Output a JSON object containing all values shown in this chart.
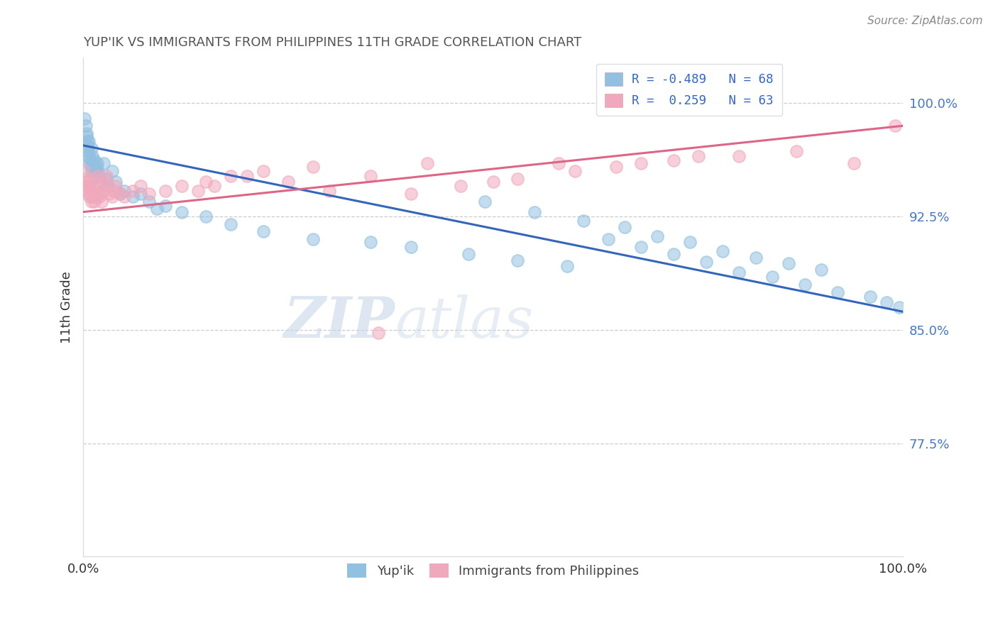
{
  "title": "YUP'IK VS IMMIGRANTS FROM PHILIPPINES 11TH GRADE CORRELATION CHART",
  "source": "Source: ZipAtlas.com",
  "ylabel": "11th Grade",
  "ytick_labels": [
    "100.0%",
    "92.5%",
    "85.0%",
    "77.5%"
  ],
  "ytick_values": [
    1.0,
    0.925,
    0.85,
    0.775
  ],
  "legend_bottom": [
    "Yup'ik",
    "Immigrants from Philippines"
  ],
  "blue_color": "#92c0e0",
  "pink_color": "#f0a8bc",
  "blue_line_color": "#3366bb",
  "pink_line_color": "#dd6688",
  "blue_scatter": {
    "x": [
      0.002,
      0.003,
      0.004,
      0.004,
      0.005,
      0.005,
      0.006,
      0.006,
      0.007,
      0.007,
      0.008,
      0.008,
      0.009,
      0.01,
      0.01,
      0.011,
      0.012,
      0.013,
      0.014,
      0.015,
      0.016,
      0.017,
      0.018,
      0.02,
      0.022,
      0.025,
      0.028,
      0.03,
      0.035,
      0.04,
      0.045,
      0.05,
      0.06,
      0.07,
      0.08,
      0.09,
      0.1,
      0.12,
      0.15,
      0.18,
      0.22,
      0.28,
      0.35,
      0.4,
      0.47,
      0.53,
      0.59,
      0.64,
      0.68,
      0.72,
      0.76,
      0.8,
      0.84,
      0.88,
      0.92,
      0.96,
      0.98,
      0.995,
      0.49,
      0.55,
      0.61,
      0.66,
      0.7,
      0.74,
      0.78,
      0.82,
      0.86,
      0.9
    ],
    "y": [
      0.99,
      0.985,
      0.98,
      0.978,
      0.975,
      0.972,
      0.97,
      0.968,
      0.965,
      0.975,
      0.96,
      0.963,
      0.958,
      0.97,
      0.955,
      0.965,
      0.96,
      0.958,
      0.962,
      0.955,
      0.958,
      0.96,
      0.955,
      0.952,
      0.948,
      0.96,
      0.95,
      0.945,
      0.955,
      0.948,
      0.94,
      0.942,
      0.938,
      0.94,
      0.935,
      0.93,
      0.932,
      0.928,
      0.925,
      0.92,
      0.915,
      0.91,
      0.908,
      0.905,
      0.9,
      0.896,
      0.892,
      0.91,
      0.905,
      0.9,
      0.895,
      0.888,
      0.885,
      0.88,
      0.875,
      0.872,
      0.868,
      0.865,
      0.935,
      0.928,
      0.922,
      0.918,
      0.912,
      0.908,
      0.902,
      0.898,
      0.894,
      0.89
    ]
  },
  "pink_scatter": {
    "x": [
      0.002,
      0.003,
      0.004,
      0.005,
      0.005,
      0.006,
      0.007,
      0.008,
      0.008,
      0.009,
      0.01,
      0.011,
      0.012,
      0.013,
      0.014,
      0.015,
      0.016,
      0.017,
      0.018,
      0.019,
      0.02,
      0.022,
      0.024,
      0.026,
      0.028,
      0.03,
      0.032,
      0.035,
      0.038,
      0.04,
      0.045,
      0.05,
      0.06,
      0.07,
      0.08,
      0.1,
      0.12,
      0.15,
      0.18,
      0.22,
      0.28,
      0.35,
      0.42,
      0.5,
      0.58,
      0.65,
      0.72,
      0.8,
      0.87,
      0.94,
      0.36,
      0.14,
      0.16,
      0.2,
      0.25,
      0.3,
      0.4,
      0.46,
      0.53,
      0.6,
      0.68,
      0.75,
      0.99
    ],
    "y": [
      0.955,
      0.95,
      0.948,
      0.945,
      0.942,
      0.94,
      0.948,
      0.938,
      0.945,
      0.942,
      0.935,
      0.94,
      0.938,
      0.95,
      0.935,
      0.942,
      0.938,
      0.952,
      0.945,
      0.94,
      0.938,
      0.935,
      0.942,
      0.948,
      0.952,
      0.945,
      0.94,
      0.938,
      0.942,
      0.945,
      0.94,
      0.938,
      0.942,
      0.945,
      0.94,
      0.942,
      0.945,
      0.948,
      0.952,
      0.955,
      0.958,
      0.952,
      0.96,
      0.948,
      0.96,
      0.958,
      0.962,
      0.965,
      0.968,
      0.96,
      0.848,
      0.942,
      0.945,
      0.952,
      0.948,
      0.942,
      0.94,
      0.945,
      0.95,
      0.955,
      0.96,
      0.965,
      0.985
    ]
  },
  "blue_line": {
    "x_start": 0.0,
    "x_end": 1.0,
    "y_start": 0.972,
    "y_end": 0.862
  },
  "pink_line": {
    "x_start": 0.0,
    "x_end": 1.0,
    "y_start": 0.928,
    "y_end": 0.985
  },
  "xlim": [
    0.0,
    1.0
  ],
  "ylim": [
    0.7,
    1.03
  ],
  "figsize": [
    14.06,
    8.92
  ],
  "dpi": 100,
  "legend_R_blue": "R = -0.489",
  "legend_N_blue": "N = 68",
  "legend_R_pink": "R =  0.259",
  "legend_N_pink": "N = 63"
}
